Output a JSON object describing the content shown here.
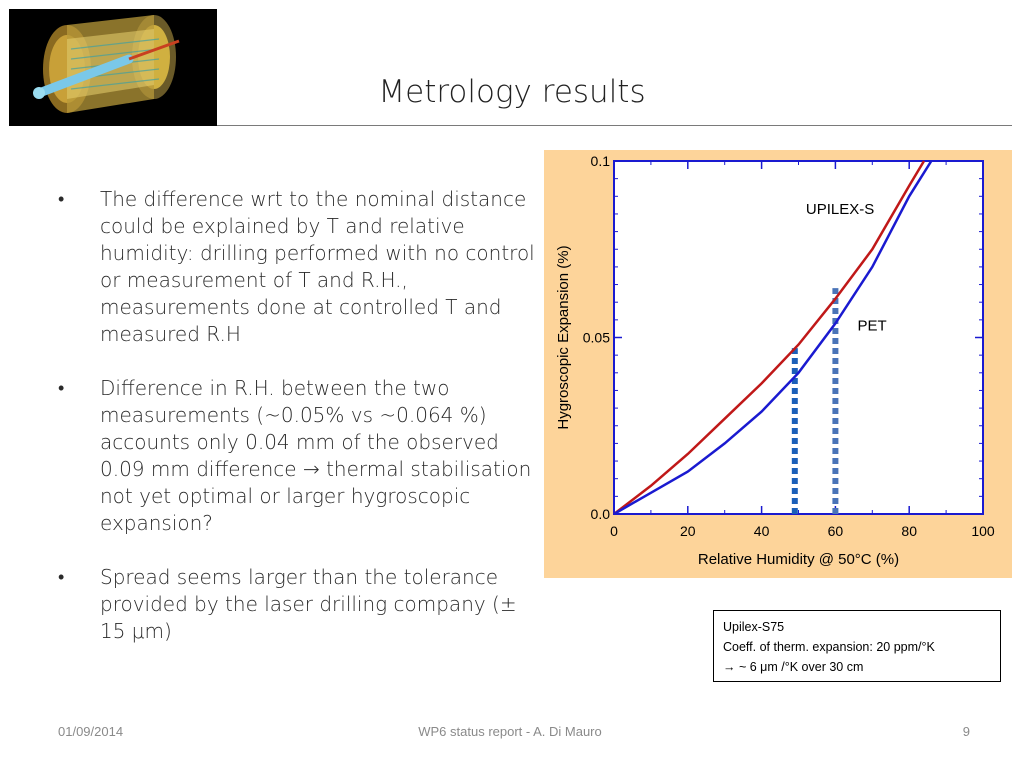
{
  "slide": {
    "title": "Metrology results",
    "logo_alt": "detector-image"
  },
  "bullets": [
    {
      "text": "The difference wrt to the nominal distance could be explained by T and relative humidity: drilling performed with no control or measurement of T and R.H., measurements done at controlled T and measured R.H"
    },
    {
      "text": "Difference in R.H. between the two measurements (~0.05% vs ~0.064 %) accounts only 0.04 mm of the observed 0.09 mm difference → thermal stabilisation not yet optimal or larger hygroscopic expansion?"
    },
    {
      "text": "Spread seems larger than the tolerance provided by the laser drilling company (± 15 μm)"
    }
  ],
  "note": {
    "line1": "Upilex-S75",
    "line2": "Coeff. of therm. expansion: 20 ppm/°K",
    "line3": "→ ~ 6 μm /°K over 30 cm"
  },
  "footer": {
    "date": "01/09/2014",
    "center": "WP6 status report - A. Di Mauro",
    "page": "9"
  },
  "chart_data": {
    "type": "line",
    "xlabel": "Relative Humidity @ 50°C (%)",
    "ylabel": "Hygroscopic Expansion (%)",
    "xlim": [
      0,
      100
    ],
    "ylim": [
      0.0,
      0.1
    ],
    "x_ticks": [
      "0",
      "20",
      "40",
      "60",
      "80",
      "100"
    ],
    "y_ticks": [
      "0.0",
      "0.05",
      "0.1"
    ],
    "background": "#fdd49a",
    "series": [
      {
        "name": "UPILEX-S",
        "color": "#c01818",
        "x": [
          0,
          10,
          20,
          30,
          40,
          50,
          60,
          70,
          80,
          84
        ],
        "y": [
          0.0,
          0.008,
          0.017,
          0.027,
          0.037,
          0.048,
          0.061,
          0.075,
          0.093,
          0.1
        ]
      },
      {
        "name": "PET",
        "color": "#1a1ad0",
        "x": [
          0,
          10,
          20,
          30,
          40,
          50,
          60,
          70,
          80,
          86
        ],
        "y": [
          0.0,
          0.006,
          0.012,
          0.02,
          0.029,
          0.04,
          0.054,
          0.07,
          0.09,
          0.1
        ]
      }
    ],
    "markers": [
      {
        "x": 49,
        "y_top": 0.047,
        "color": "#1c5fb8"
      },
      {
        "x": 60,
        "y_top": 0.064,
        "color": "#4a74b8"
      }
    ],
    "series_labels": [
      {
        "text": "UPILEX-S",
        "x": 52,
        "y": 0.085
      },
      {
        "text": "PET",
        "x": 66,
        "y": 0.052
      }
    ]
  }
}
